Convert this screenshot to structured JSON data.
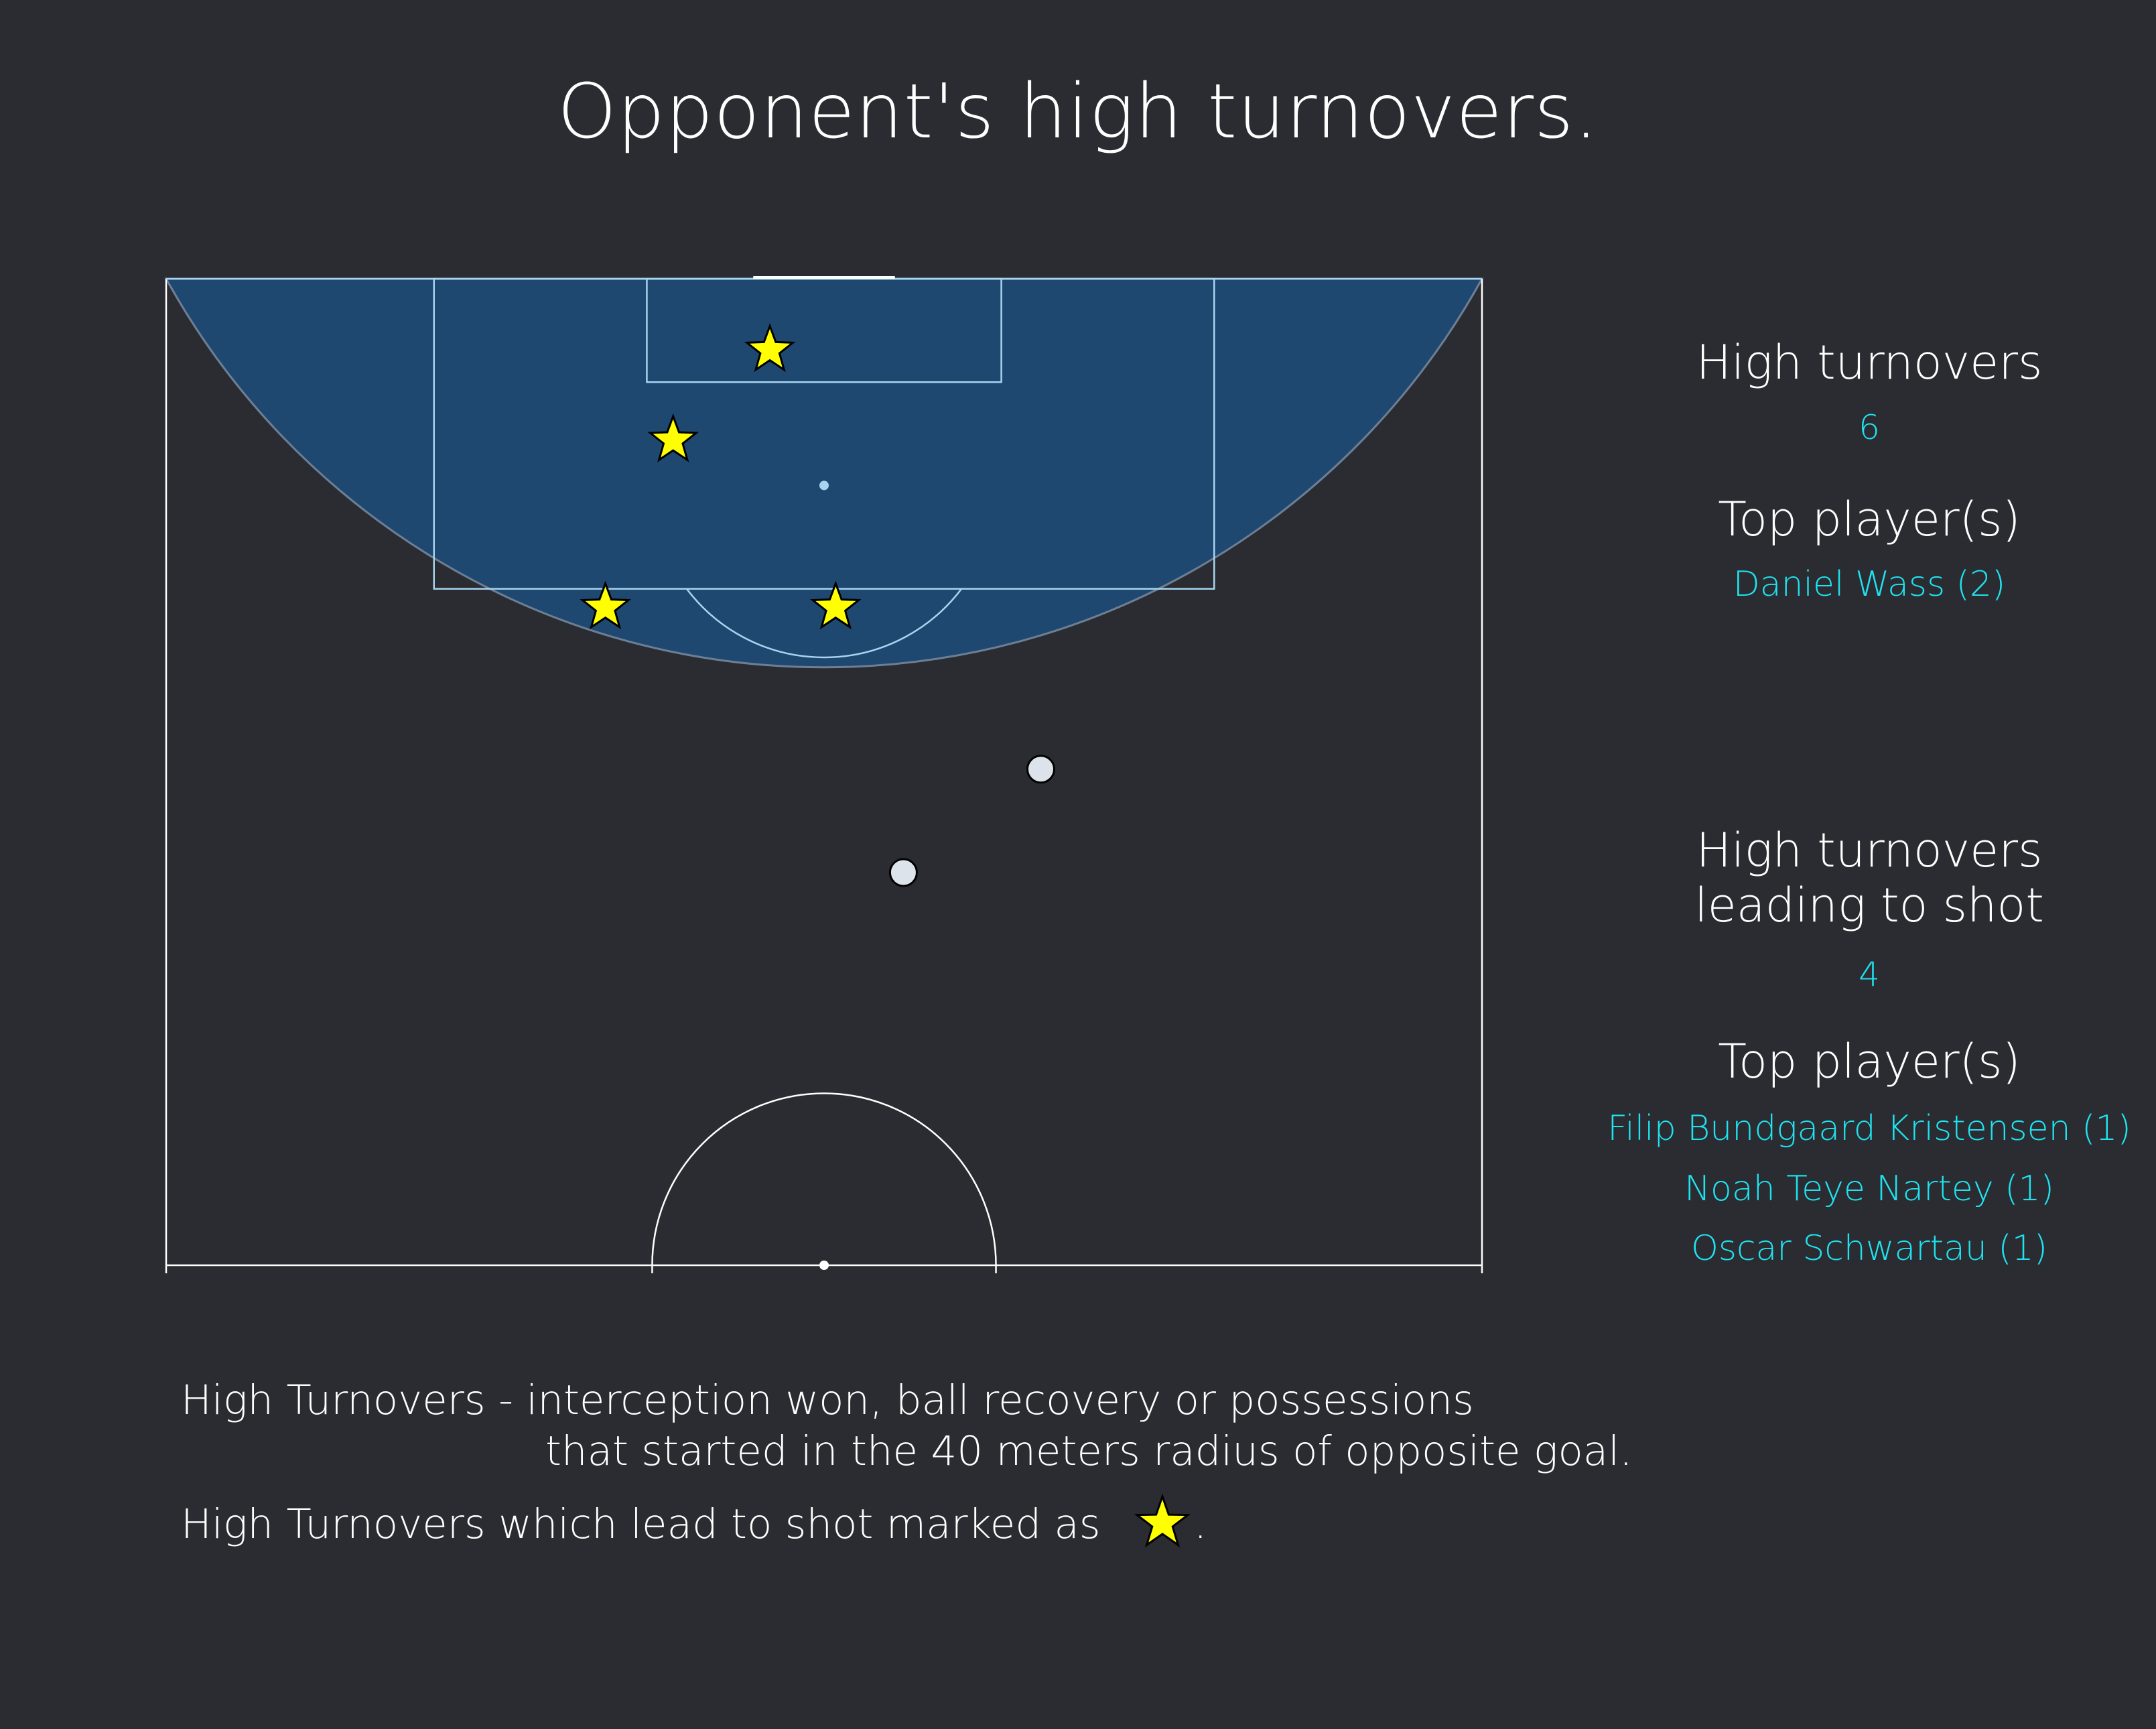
{
  "title": "Opponent's high turnovers.",
  "panel": {
    "high_turnovers_label": "High turnovers",
    "high_turnovers_value": "6",
    "top_players_label_1": "Top player(s)",
    "top_players_1": [
      "Daniel Wass (2)"
    ],
    "shot_label_line1": "High turnovers",
    "shot_label_line2": "leading to shot",
    "shot_value": "4",
    "top_players_label_2": "Top player(s)",
    "top_players_2": [
      "Filip Bundgaard Kristensen (1)",
      "Noah Teye Nartey (1)",
      "Oscar Schwartau (1)"
    ]
  },
  "notes": {
    "line1": "High Turnovers - interception won, ball recovery or possessions",
    "line2": "that started in the 40 meters radius of opposite goal.",
    "line3_prefix": "High Turnovers which lead to shot marked as",
    "line3_suffix": "."
  },
  "colors": {
    "background": "#2b2c31",
    "zone_fill": "#1f4871",
    "star_fill": "#ffff00",
    "dot_fill": "#dde3ea",
    "accent_text": "#1fe3f0"
  },
  "chart_data": {
    "type": "scatter",
    "title": "Opponent's high turnovers.",
    "pitch": "vertical half pitch, attacking goal at top",
    "zone": "40 meters radius of opposite goal",
    "units": "meters from goal line (y) and from left touchline (x), pitch 68 m wide",
    "series": [
      {
        "name": "High turnovers leading to shot",
        "marker": "star",
        "points": [
          {
            "x": 31.2,
            "y": 3.8
          },
          {
            "x": 26.2,
            "y": 8.6
          },
          {
            "x": 22.7,
            "y": 17.5
          },
          {
            "x": 34.6,
            "y": 17.5
          }
        ]
      },
      {
        "name": "High turnovers",
        "marker": "circle",
        "points": [
          {
            "x": 45.2,
            "y": 26.1
          },
          {
            "x": 38.1,
            "y": 31.6
          }
        ]
      }
    ]
  }
}
